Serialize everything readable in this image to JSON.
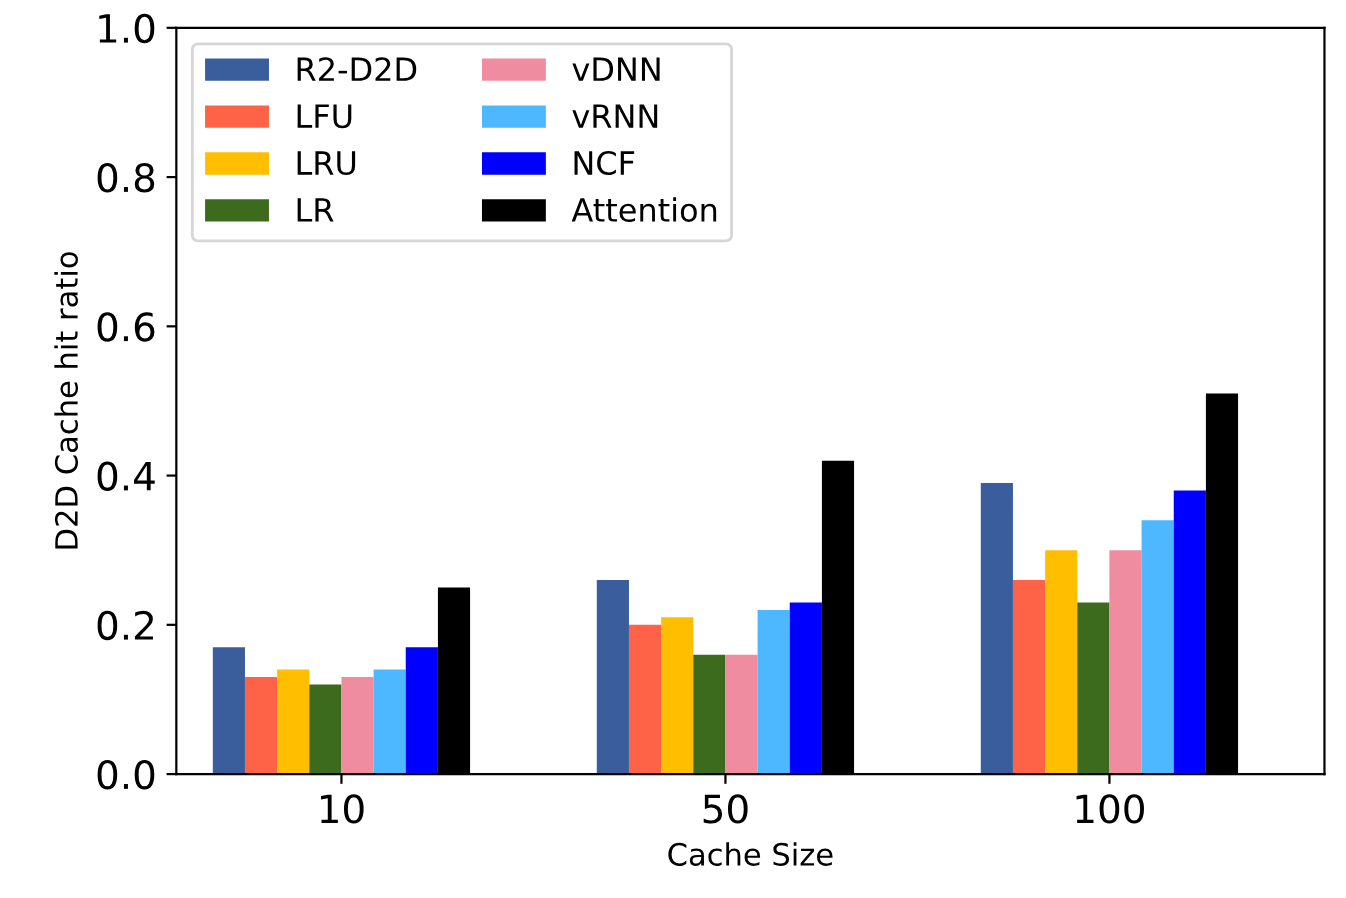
{
  "chart_data": {
    "type": "bar",
    "xlabel": "Cache Size",
    "ylabel": "D2D Cache hit ratio",
    "categories": [
      "10",
      "50",
      "100"
    ],
    "series": [
      {
        "name": "R2-D2D",
        "color": "#3a5e9b",
        "values": [
          0.17,
          0.26,
          0.39
        ]
      },
      {
        "name": "LFU",
        "color": "#ff6347",
        "values": [
          0.13,
          0.2,
          0.26
        ]
      },
      {
        "name": "LRU",
        "color": "#ffbf00",
        "values": [
          0.14,
          0.21,
          0.3
        ]
      },
      {
        "name": "LR",
        "color": "#3d6b1e",
        "values": [
          0.12,
          0.16,
          0.23
        ]
      },
      {
        "name": "vDNN",
        "color": "#f08ca0",
        "values": [
          0.13,
          0.16,
          0.3
        ]
      },
      {
        "name": "vRNN",
        "color": "#4db8ff",
        "values": [
          0.14,
          0.22,
          0.34
        ]
      },
      {
        "name": "NCF",
        "color": "#0000ff",
        "values": [
          0.17,
          0.23,
          0.38
        ]
      },
      {
        "name": "Attention",
        "color": "#000000",
        "values": [
          0.25,
          0.42,
          0.51
        ]
      }
    ],
    "ylim": [
      0,
      1.0
    ],
    "yticks": [
      {
        "value": 0,
        "label": "0.0"
      },
      {
        "value": 0.2,
        "label": "0.2"
      },
      {
        "value": 0.4,
        "label": "0.4"
      },
      {
        "value": 0.6,
        "label": "0.6"
      },
      {
        "value": 0.8,
        "label": "0.8"
      },
      {
        "value": 1.0,
        "label": "1.0"
      }
    ],
    "grid": false,
    "legend": "top left"
  }
}
